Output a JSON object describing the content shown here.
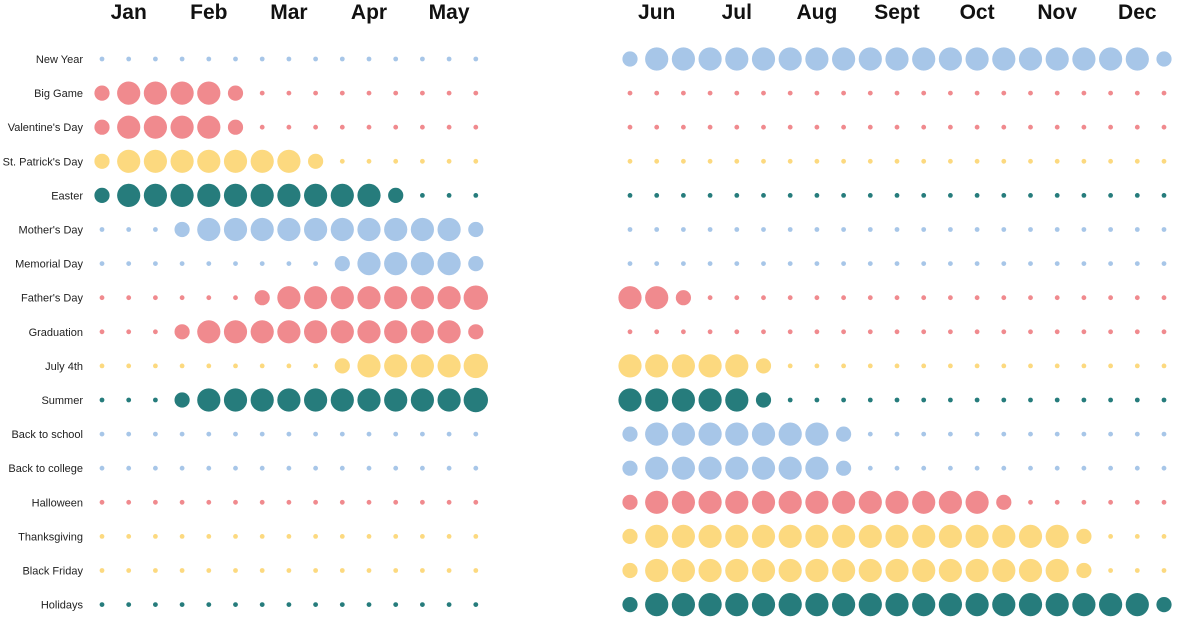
{
  "chart_data": {
    "type": "scatter",
    "colors": {
      "blue": "#a7c6e8",
      "red": "#f08a8e",
      "yellow": "#fcd97f",
      "teal": "#267c7c"
    },
    "panels": [
      {
        "months": [
          "Jan",
          "Feb",
          "Mar",
          "Apr",
          "May"
        ],
        "columns": 15
      },
      {
        "months": [
          "Jun",
          "Jul",
          "Aug",
          "Sept",
          "Oct",
          "Nov",
          "Dec"
        ],
        "columns": 21
      }
    ],
    "legend": "none",
    "grid": false,
    "size_scale": "dot size = relative intensity (0 = smallest dot, 3 = largest)",
    "rows": [
      {
        "label": "New Year",
        "color": "blue",
        "values": [
          0,
          0,
          0,
          0,
          0,
          0,
          0,
          0,
          0,
          0,
          0,
          0,
          0,
          0,
          0,
          1,
          2,
          2,
          2,
          2,
          2,
          2,
          2,
          2,
          2,
          2,
          2,
          2,
          2,
          2,
          2,
          2,
          2,
          2,
          2,
          1
        ]
      },
      {
        "label": "Big Game",
        "color": "red",
        "values": [
          1,
          2,
          2,
          2,
          2,
          1,
          0,
          0,
          0,
          0,
          0,
          0,
          0,
          0,
          0,
          0,
          0,
          0,
          0,
          0,
          0,
          0,
          0,
          0,
          0,
          0,
          0,
          0,
          0,
          0,
          0,
          0,
          0,
          0,
          0,
          0
        ]
      },
      {
        "label": "Valentine's Day",
        "color": "red",
        "values": [
          1,
          2,
          2,
          2,
          2,
          1,
          0,
          0,
          0,
          0,
          0,
          0,
          0,
          0,
          0,
          0,
          0,
          0,
          0,
          0,
          0,
          0,
          0,
          0,
          0,
          0,
          0,
          0,
          0,
          0,
          0,
          0,
          0,
          0,
          0,
          0
        ]
      },
      {
        "label": "St. Patrick's Day",
        "color": "yellow",
        "values": [
          1,
          2,
          2,
          2,
          2,
          2,
          2,
          2,
          1,
          0,
          0,
          0,
          0,
          0,
          0,
          0,
          0,
          0,
          0,
          0,
          0,
          0,
          0,
          0,
          0,
          0,
          0,
          0,
          0,
          0,
          0,
          0,
          0,
          0,
          0,
          0
        ]
      },
      {
        "label": "Easter",
        "color": "teal",
        "values": [
          1,
          2,
          2,
          2,
          2,
          2,
          2,
          2,
          2,
          2,
          2,
          1,
          0,
          0,
          0,
          0,
          0,
          0,
          0,
          0,
          0,
          0,
          0,
          0,
          0,
          0,
          0,
          0,
          0,
          0,
          0,
          0,
          0,
          0,
          0,
          0
        ]
      },
      {
        "label": "Mother's Day",
        "color": "blue",
        "values": [
          0,
          0,
          0,
          1,
          2,
          2,
          2,
          2,
          2,
          2,
          2,
          2,
          2,
          2,
          1,
          0,
          0,
          0,
          0,
          0,
          0,
          0,
          0,
          0,
          0,
          0,
          0,
          0,
          0,
          0,
          0,
          0,
          0,
          0,
          0,
          0
        ]
      },
      {
        "label": "Memorial Day",
        "color": "blue",
        "values": [
          0,
          0,
          0,
          0,
          0,
          0,
          0,
          0,
          0,
          1,
          2,
          2,
          2,
          2,
          1,
          0,
          0,
          0,
          0,
          0,
          0,
          0,
          0,
          0,
          0,
          0,
          0,
          0,
          0,
          0,
          0,
          0,
          0,
          0,
          0,
          0
        ]
      },
      {
        "label": "Father's Day",
        "color": "red",
        "values": [
          0,
          0,
          0,
          0,
          0,
          0,
          1,
          2,
          2,
          2,
          2,
          2,
          2,
          2,
          3,
          2,
          2,
          1,
          0,
          0,
          0,
          0,
          0,
          0,
          0,
          0,
          0,
          0,
          0,
          0,
          0,
          0,
          0,
          0,
          0,
          0
        ]
      },
      {
        "label": "Graduation",
        "color": "red",
        "values": [
          0,
          0,
          0,
          1,
          2,
          2,
          2,
          2,
          2,
          2,
          2,
          2,
          2,
          2,
          1,
          0,
          0,
          0,
          0,
          0,
          0,
          0,
          0,
          0,
          0,
          0,
          0,
          0,
          0,
          0,
          0,
          0,
          0,
          0,
          0,
          0
        ]
      },
      {
        "label": "July 4th",
        "color": "yellow",
        "values": [
          0,
          0,
          0,
          0,
          0,
          0,
          0,
          0,
          0,
          1,
          2,
          2,
          2,
          2,
          3,
          2,
          2,
          2,
          2,
          2,
          1,
          0,
          0,
          0,
          0,
          0,
          0,
          0,
          0,
          0,
          0,
          0,
          0,
          0,
          0,
          0
        ]
      },
      {
        "label": "Summer",
        "color": "teal",
        "values": [
          0,
          0,
          0,
          1,
          2,
          2,
          2,
          2,
          2,
          2,
          2,
          2,
          2,
          2,
          3,
          2,
          2,
          2,
          2,
          2,
          1,
          0,
          0,
          0,
          0,
          0,
          0,
          0,
          0,
          0,
          0,
          0,
          0,
          0,
          0,
          0
        ]
      },
      {
        "label": "Back to school",
        "color": "blue",
        "values": [
          0,
          0,
          0,
          0,
          0,
          0,
          0,
          0,
          0,
          0,
          0,
          0,
          0,
          0,
          0,
          1,
          2,
          2,
          2,
          2,
          2,
          2,
          2,
          1,
          0,
          0,
          0,
          0,
          0,
          0,
          0,
          0,
          0,
          0,
          0,
          0
        ]
      },
      {
        "label": "Back to college",
        "color": "blue",
        "values": [
          0,
          0,
          0,
          0,
          0,
          0,
          0,
          0,
          0,
          0,
          0,
          0,
          0,
          0,
          0,
          1,
          2,
          2,
          2,
          2,
          2,
          2,
          2,
          1,
          0,
          0,
          0,
          0,
          0,
          0,
          0,
          0,
          0,
          0,
          0,
          0
        ]
      },
      {
        "label": "Halloween",
        "color": "red",
        "values": [
          0,
          0,
          0,
          0,
          0,
          0,
          0,
          0,
          0,
          0,
          0,
          0,
          0,
          0,
          0,
          1,
          2,
          2,
          2,
          2,
          2,
          2,
          2,
          2,
          2,
          2,
          2,
          2,
          2,
          1,
          0,
          0,
          0,
          0,
          0,
          0
        ]
      },
      {
        "label": "Thanksgiving",
        "color": "yellow",
        "values": [
          0,
          0,
          0,
          0,
          0,
          0,
          0,
          0,
          0,
          0,
          0,
          0,
          0,
          0,
          0,
          1,
          2,
          2,
          2,
          2,
          2,
          2,
          2,
          2,
          2,
          2,
          2,
          2,
          2,
          2,
          2,
          2,
          1,
          0,
          0,
          0
        ]
      },
      {
        "label": "Black Friday",
        "color": "yellow",
        "values": [
          0,
          0,
          0,
          0,
          0,
          0,
          0,
          0,
          0,
          0,
          0,
          0,
          0,
          0,
          0,
          1,
          2,
          2,
          2,
          2,
          2,
          2,
          2,
          2,
          2,
          2,
          2,
          2,
          2,
          2,
          2,
          2,
          1,
          0,
          0,
          0
        ]
      },
      {
        "label": "Holidays",
        "color": "teal",
        "values": [
          0,
          0,
          0,
          0,
          0,
          0,
          0,
          0,
          0,
          0,
          0,
          0,
          0,
          0,
          0,
          1,
          2,
          2,
          2,
          2,
          2,
          2,
          2,
          2,
          2,
          2,
          2,
          2,
          2,
          2,
          2,
          2,
          2,
          2,
          2,
          1
        ]
      }
    ]
  }
}
